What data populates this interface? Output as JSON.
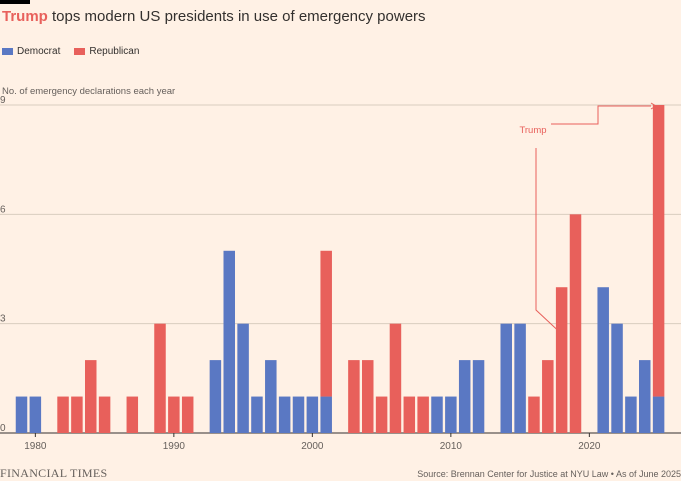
{
  "title": {
    "highlight": "Trump",
    "rest": "tops modern US presidents in use of emergency powers"
  },
  "legend": [
    {
      "label": "Democrat",
      "color": "#5a78c3"
    },
    {
      "label": "Republican",
      "color": "#e8605b"
    }
  ],
  "ylabel": "No. of emergency declarations each year",
  "annotation": "Trump",
  "footer": {
    "brand": "FINANCIAL TIMES",
    "source": "Source: Brennan Center for Justice at NYU Law • As of June 2025"
  },
  "chart_data": {
    "type": "bar",
    "stacked": true,
    "x": [
      1979,
      1980,
      1981,
      1982,
      1983,
      1984,
      1985,
      1986,
      1987,
      1988,
      1989,
      1990,
      1991,
      1992,
      1993,
      1994,
      1995,
      1996,
      1997,
      1998,
      1999,
      2000,
      2001,
      2002,
      2003,
      2004,
      2005,
      2006,
      2007,
      2008,
      2009,
      2010,
      2011,
      2012,
      2013,
      2014,
      2015,
      2016,
      2017,
      2018,
      2019,
      2020,
      2021,
      2022,
      2023,
      2024,
      2025
    ],
    "series": [
      {
        "name": "Democrat",
        "color": "#5a78c3",
        "values": [
          1,
          1,
          0,
          0,
          0,
          0,
          0,
          0,
          0,
          0,
          0,
          0,
          0,
          0,
          2,
          5,
          3,
          1,
          2,
          1,
          1,
          1,
          1,
          0,
          0,
          0,
          0,
          0,
          0,
          0,
          1,
          1,
          2,
          2,
          0,
          3,
          3,
          0,
          0,
          0,
          0,
          0,
          4,
          3,
          1,
          2,
          1
        ]
      },
      {
        "name": "Republican",
        "color": "#e8605b",
        "values": [
          0,
          0,
          0,
          1,
          1,
          2,
          1,
          0,
          1,
          0,
          3,
          1,
          1,
          0,
          0,
          0,
          0,
          0,
          0,
          0,
          0,
          0,
          4,
          0,
          2,
          2,
          1,
          3,
          1,
          1,
          0,
          0,
          0,
          0,
          0,
          0,
          0,
          1,
          2,
          4,
          6,
          0,
          0,
          0,
          0,
          0,
          8
        ]
      }
    ],
    "xticks": [
      1980,
      1990,
      2000,
      2010,
      2020
    ],
    "yticks": [
      0,
      3,
      6,
      9
    ],
    "ylim": [
      0,
      9
    ],
    "grid": true
  }
}
